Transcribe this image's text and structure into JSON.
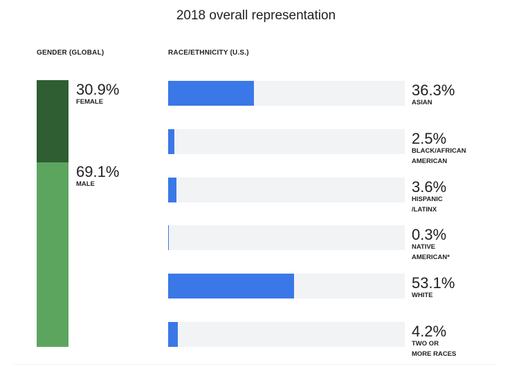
{
  "chart_data": [
    {
      "type": "bar",
      "orientation": "vertical-stacked",
      "title": "GENDER (GLOBAL)",
      "unit": "%",
      "categories": [
        "FEMALE",
        "MALE"
      ],
      "values": [
        30.9,
        69.1
      ],
      "value_labels": [
        "30.9%",
        "69.1%"
      ],
      "colors": [
        "#2e5e32",
        "#5ba55f"
      ]
    },
    {
      "type": "bar",
      "orientation": "horizontal",
      "title": "RACE/ETHNICITY  (U.S.)",
      "unit": "%",
      "xlim": [
        0,
        100
      ],
      "categories": [
        "ASIAN",
        "BLACK/AFRICAN AMERICAN",
        "HISPANIC /LATINX",
        "NATIVE AMERICAN*",
        "WHITE",
        "TWO OR MORE RACES"
      ],
      "category_lines": [
        [
          "ASIAN"
        ],
        [
          "BLACK/AFRICAN",
          "AMERICAN"
        ],
        [
          "HISPANIC",
          "/LATINX"
        ],
        [
          "NATIVE",
          "AMERICAN*"
        ],
        [
          "WHITE"
        ],
        [
          "TWO OR",
          "MORE RACES"
        ]
      ],
      "values": [
        36.3,
        2.5,
        3.6,
        0.3,
        53.1,
        4.2
      ],
      "value_labels": [
        "36.3%",
        "2.5%",
        "3.6%",
        "0.3%",
        "53.1%",
        "4.2%"
      ],
      "bar_color": "#3b78e7",
      "track_color": "#f1f3f4"
    }
  ],
  "page": {
    "title": "2018 overall representation"
  }
}
